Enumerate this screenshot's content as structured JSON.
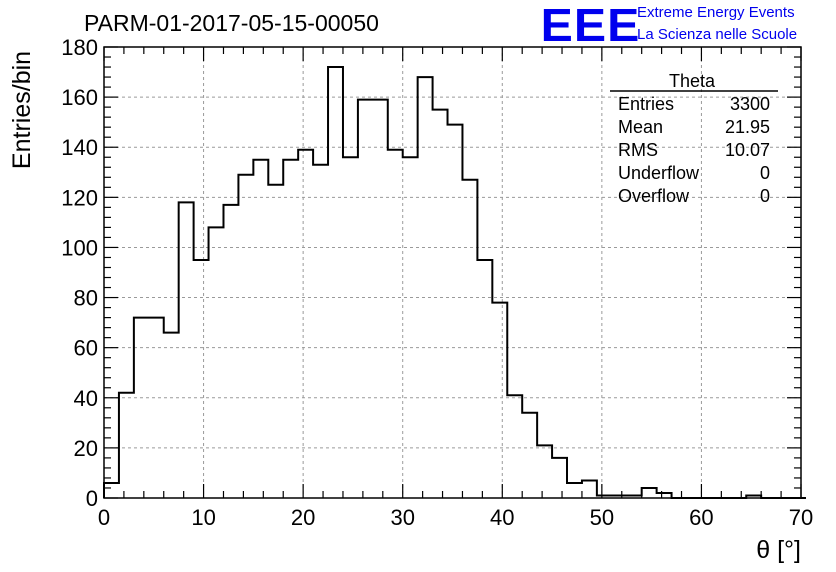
{
  "page": {
    "title": "PARM-01-2017-05-15-00050",
    "logo": "EEE",
    "org_line1": "Extreme Energy Events",
    "org_line2": "La Scienza nelle Scuole"
  },
  "stats": {
    "name": "Theta",
    "rows": [
      {
        "label": "Entries",
        "value": "3300"
      },
      {
        "label": "Mean",
        "value": "21.95"
      },
      {
        "label": "RMS",
        "value": "10.07"
      },
      {
        "label": "Underflow",
        "value": "0"
      },
      {
        "label": "Overflow",
        "value": "0"
      }
    ]
  },
  "colors": {
    "line": "#000000",
    "grid": "#9a9a9a",
    "brand": "#0000ee"
  },
  "chart_data": {
    "type": "histogram",
    "xlabel": "θ [°]",
    "ylabel": "Entries/bin",
    "xlim": [
      0,
      70
    ],
    "ylim": [
      0,
      180
    ],
    "xticks": [
      0,
      10,
      20,
      30,
      40,
      50,
      60,
      70
    ],
    "yticks": [
      0,
      20,
      40,
      60,
      80,
      100,
      120,
      140,
      160,
      180
    ],
    "grid": true,
    "bin_width": 1.5,
    "bin_start": 0,
    "values": [
      6,
      42,
      72,
      72,
      66,
      118,
      95,
      108,
      117,
      129,
      135,
      125,
      135,
      139,
      133,
      172,
      136,
      159,
      159,
      139,
      136,
      168,
      155,
      149,
      127,
      95,
      78,
      41,
      34,
      21,
      16,
      6,
      7,
      1,
      1,
      1,
      4,
      2,
      0,
      0,
      0,
      0,
      0,
      1,
      0,
      0,
      0
    ]
  }
}
